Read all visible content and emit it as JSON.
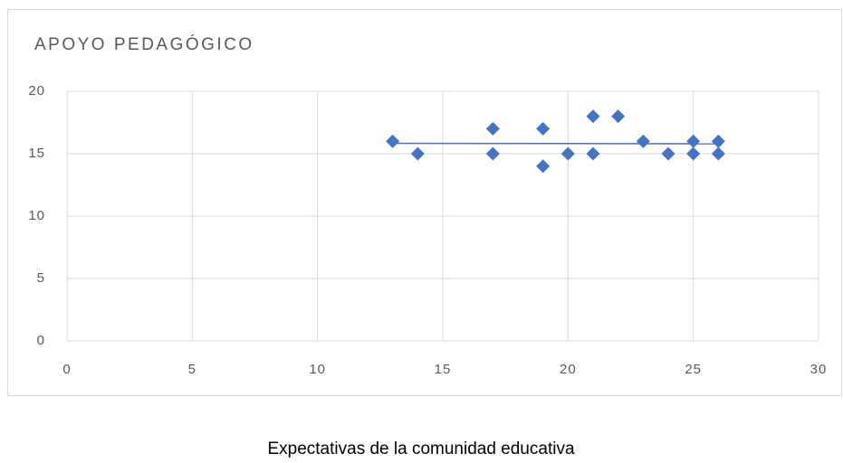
{
  "chart_data": {
    "type": "scatter",
    "title": "APOYO PEDAGÓGICO",
    "x_label": "Expectativas de la comunidad educativa",
    "series": [
      {
        "color": "#4472c4",
        "x": [
          13,
          14,
          17,
          17,
          19,
          19,
          20,
          21,
          21,
          22,
          23,
          24,
          25,
          25,
          26,
          26
        ],
        "values": [
          16,
          15,
          17,
          15,
          17,
          14,
          15,
          18,
          15,
          18,
          16,
          15,
          16,
          15,
          16,
          15
        ]
      }
    ],
    "trendline": true,
    "xlim": [
      0,
      30
    ],
    "xticks": [
      0,
      5,
      10,
      15,
      20,
      25,
      30
    ],
    "ylim": [
      0,
      20
    ],
    "yticks": [
      0,
      5,
      10,
      15,
      20
    ],
    "grid": true
  }
}
